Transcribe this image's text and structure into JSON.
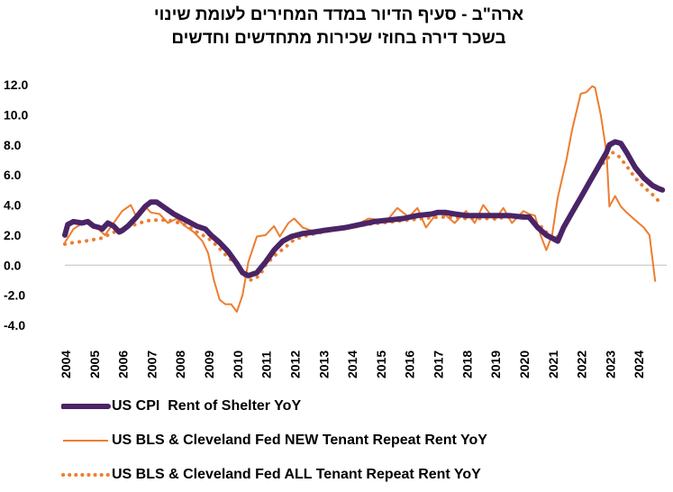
{
  "chart_data": {
    "type": "line",
    "title": [
      "ארה\"ב - סעיף הדיור במדד המחירים לעומת שינוי",
      "בשכר דירה בחוזי שכירות מתחדשים וחדשים"
    ],
    "xlabel": "",
    "ylabel": "",
    "ylim": [
      -4.0,
      12.0
    ],
    "xlim": [
      2004,
      2025
    ],
    "yticks": [
      "12.0",
      "10.0",
      "8.0",
      "6.0",
      "4.0",
      "2.0",
      "0.0",
      "-2.0",
      "-4.0"
    ],
    "ytick_values": [
      12,
      10,
      8,
      6,
      4,
      2,
      0,
      -2,
      -4
    ],
    "xticks": [
      "2004",
      "2005",
      "2006",
      "2007",
      "2008",
      "2009",
      "2010",
      "2011",
      "2012",
      "2013",
      "2014",
      "2015",
      "2016",
      "2017",
      "2018",
      "2019",
      "2020",
      "2021",
      "2022",
      "2023",
      "2024"
    ],
    "series": [
      {
        "name": "US CPI  Rent of Shelter YoY",
        "style": "thick",
        "color": "#4a2466",
        "x": [
          2004.0,
          2004.1,
          2004.3,
          2004.6,
          2004.8,
          2005.0,
          2005.2,
          2005.3,
          2005.5,
          2005.7,
          2005.9,
          2006.0,
          2006.2,
          2006.5,
          2006.8,
          2007.0,
          2007.2,
          2007.5,
          2007.8,
          2008.0,
          2008.3,
          2008.6,
          2008.9,
          2009.1,
          2009.4,
          2009.7,
          2010.0,
          2010.2,
          2010.4,
          2010.7,
          2011.0,
          2011.3,
          2011.6,
          2011.9,
          2012.3,
          2012.7,
          2013.0,
          2013.4,
          2013.8,
          2014.3,
          2014.8,
          2015.3,
          2015.8,
          2016.3,
          2016.8,
          2017.0,
          2017.3,
          2017.6,
          2018.0,
          2018.5,
          2019.0,
          2019.5,
          2020.0,
          2020.2,
          2020.5,
          2020.8,
          2021.0,
          2021.2,
          2021.4,
          2021.7,
          2022.0,
          2022.3,
          2022.6,
          2022.9,
          2023.0,
          2023.2,
          2023.4,
          2023.6,
          2023.9,
          2024.2,
          2024.5,
          2024.7,
          2024.85
        ],
        "values": [
          2.0,
          2.7,
          2.9,
          2.8,
          2.9,
          2.6,
          2.5,
          2.4,
          2.8,
          2.6,
          2.2,
          2.3,
          2.6,
          3.2,
          3.9,
          4.2,
          4.2,
          3.8,
          3.4,
          3.2,
          2.9,
          2.6,
          2.4,
          2.0,
          1.5,
          0.9,
          0.1,
          -0.5,
          -0.7,
          -0.5,
          0.2,
          1.0,
          1.6,
          1.9,
          2.1,
          2.2,
          2.3,
          2.4,
          2.5,
          2.7,
          2.9,
          3.0,
          3.1,
          3.3,
          3.4,
          3.5,
          3.5,
          3.4,
          3.3,
          3.3,
          3.3,
          3.3,
          3.2,
          3.2,
          2.5,
          2.0,
          1.8,
          1.6,
          2.5,
          3.5,
          4.5,
          5.5,
          6.5,
          7.5,
          8.0,
          8.2,
          8.1,
          7.5,
          6.5,
          5.8,
          5.3,
          5.1,
          5.0
        ]
      },
      {
        "name": "US BLS & Cleveland Fed NEW Tenant Repeat Rent YoY",
        "style": "thin",
        "color": "#ed7d31",
        "x": [
          2004.0,
          2004.3,
          2004.7,
          2005.0,
          2005.4,
          2005.7,
          2006.0,
          2006.3,
          2006.5,
          2006.8,
          2007.0,
          2007.3,
          2007.6,
          2007.9,
          2008.2,
          2008.5,
          2008.8,
          2009.0,
          2009.2,
          2009.4,
          2009.6,
          2009.8,
          2010.0,
          2010.2,
          2010.4,
          2010.7,
          2011.0,
          2011.3,
          2011.5,
          2011.8,
          2012.0,
          2012.3,
          2012.6,
          2013.0,
          2013.3,
          2013.6,
          2014.0,
          2014.3,
          2014.6,
          2015.0,
          2015.3,
          2015.6,
          2016.0,
          2016.3,
          2016.6,
          2017.0,
          2017.3,
          2017.6,
          2018.0,
          2018.3,
          2018.6,
          2019.0,
          2019.3,
          2019.6,
          2020.0,
          2020.2,
          2020.4,
          2020.6,
          2020.8,
          2021.0,
          2021.2,
          2021.5,
          2021.7,
          2022.0,
          2022.2,
          2022.4,
          2022.5,
          2022.7,
          2022.9,
          2023.0,
          2023.2,
          2023.4,
          2023.6,
          2023.9,
          2024.2,
          2024.4,
          2024.6
        ],
        "values": [
          1.5,
          2.4,
          2.9,
          2.7,
          2.0,
          2.8,
          3.6,
          4.0,
          3.2,
          3.9,
          3.5,
          3.4,
          2.8,
          3.1,
          2.6,
          2.2,
          1.6,
          0.8,
          -1.0,
          -2.3,
          -2.6,
          -2.6,
          -3.1,
          -2.0,
          0.2,
          1.9,
          2.0,
          2.6,
          1.9,
          2.8,
          3.1,
          2.5,
          2.3,
          2.3,
          2.4,
          2.5,
          2.5,
          2.8,
          3.1,
          3.0,
          3.1,
          3.8,
          3.2,
          3.8,
          2.5,
          3.5,
          3.3,
          2.8,
          3.6,
          2.8,
          4.0,
          3.0,
          3.8,
          2.8,
          3.6,
          3.4,
          3.3,
          2.0,
          1.0,
          2.0,
          4.5,
          7.0,
          9.0,
          11.4,
          11.5,
          11.9,
          11.8,
          10.0,
          7.5,
          3.9,
          4.6,
          3.9,
          3.5,
          3.0,
          2.5,
          2.0,
          -1.1
        ]
      },
      {
        "name": "US BLS & Cleveland Fed ALL Tenant Repeat Rent YoY",
        "style": "dotted",
        "color": "#ed7d31",
        "x": [
          2004.0,
          2004.3,
          2004.7,
          2005.0,
          2005.3,
          2005.6,
          2006.0,
          2006.3,
          2006.6,
          2007.0,
          2007.3,
          2007.6,
          2008.0,
          2008.3,
          2008.6,
          2009.0,
          2009.3,
          2009.6,
          2010.0,
          2010.2,
          2010.5,
          2010.8,
          2011.0,
          2011.3,
          2011.7,
          2012.0,
          2012.5,
          2013.0,
          2013.5,
          2014.0,
          2014.5,
          2015.0,
          2015.5,
          2016.0,
          2016.5,
          2017.0,
          2017.5,
          2018.0,
          2018.5,
          2019.0,
          2019.5,
          2020.0,
          2020.3,
          2020.6,
          2020.9,
          2021.1,
          2021.4,
          2021.7,
          2022.0,
          2022.3,
          2022.6,
          2022.9,
          2023.1,
          2023.3,
          2023.6,
          2023.9,
          2024.2,
          2024.5,
          2024.7
        ],
        "values": [
          1.4,
          1.5,
          1.6,
          1.7,
          1.8,
          2.1,
          2.4,
          2.6,
          2.8,
          3.0,
          3.0,
          3.0,
          2.8,
          2.6,
          2.2,
          1.8,
          1.3,
          0.7,
          0.0,
          -0.6,
          -1.0,
          -0.7,
          0.0,
          0.6,
          1.2,
          1.7,
          2.0,
          2.2,
          2.4,
          2.5,
          2.7,
          2.8,
          2.9,
          3.0,
          3.1,
          3.2,
          3.2,
          3.1,
          3.1,
          3.1,
          3.2,
          3.3,
          3.1,
          2.6,
          2.0,
          1.7,
          2.4,
          3.5,
          4.5,
          5.5,
          6.4,
          7.0,
          7.5,
          7.3,
          6.6,
          5.8,
          5.2,
          4.7,
          4.3
        ]
      }
    ],
    "legend_position": "bottom",
    "grid": false
  }
}
